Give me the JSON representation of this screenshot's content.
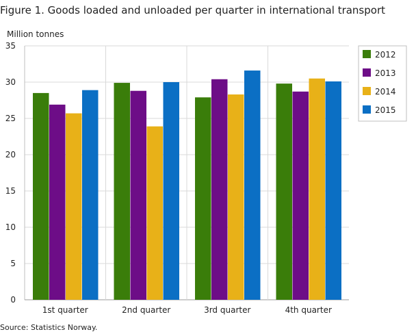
{
  "title": "Figure 1. Goods loaded and unloaded per quarter in international transport",
  "source": "Source: Statistics Norway.",
  "chart_data": {
    "type": "bar",
    "title": "Figure 1. Goods loaded and unloaded per quarter in international transport",
    "ylabel": "Million tonnes",
    "xlabel": "",
    "ylim": [
      0,
      35
    ],
    "yticks": [
      0,
      5,
      10,
      15,
      20,
      25,
      30,
      35
    ],
    "grid": true,
    "legend_position": "right",
    "categories": [
      "1st quarter",
      "2nd quarter",
      "3rd quarter",
      "4th quarter"
    ],
    "series": [
      {
        "name": "2012",
        "color": "#3a7d0a",
        "values": [
          28.5,
          29.9,
          27.9,
          29.8
        ]
      },
      {
        "name": "2013",
        "color": "#6d0d87",
        "values": [
          26.9,
          28.8,
          30.4,
          28.7
        ]
      },
      {
        "name": "2014",
        "color": "#e8b118",
        "values": [
          25.7,
          23.9,
          28.3,
          30.5
        ]
      },
      {
        "name": "2015",
        "color": "#0b6fc4",
        "values": [
          28.9,
          30.0,
          31.6,
          30.1
        ]
      }
    ]
  }
}
